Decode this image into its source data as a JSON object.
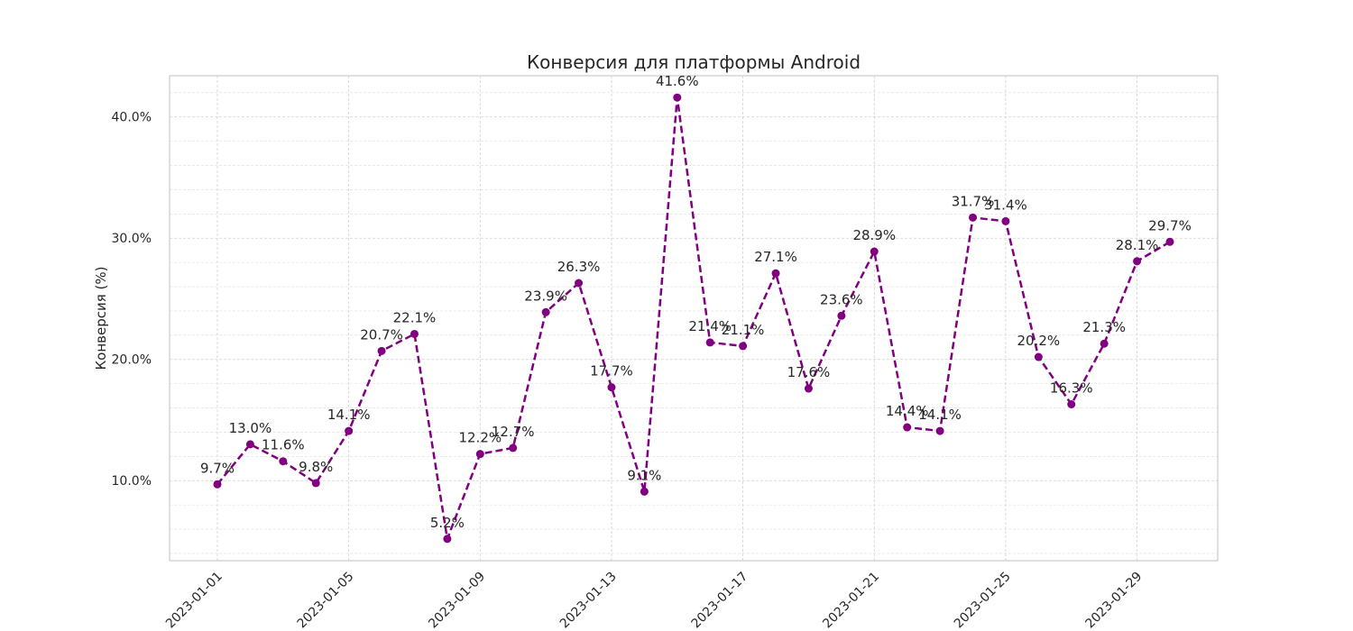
{
  "chart_data": {
    "type": "line",
    "title": "Конверсия для платформы Android",
    "xlabel": "",
    "ylabel": "Конверсия (%)",
    "x": [
      "2023-01-01",
      "2023-01-02",
      "2023-01-03",
      "2023-01-04",
      "2023-01-05",
      "2023-01-06",
      "2023-01-07",
      "2023-01-08",
      "2023-01-09",
      "2023-01-10",
      "2023-01-11",
      "2023-01-12",
      "2023-01-13",
      "2023-01-14",
      "2023-01-15",
      "2023-01-16",
      "2023-01-17",
      "2023-01-18",
      "2023-01-19",
      "2023-01-20",
      "2023-01-21",
      "2023-01-22",
      "2023-01-23",
      "2023-01-24",
      "2023-01-25",
      "2023-01-26",
      "2023-01-27",
      "2023-01-28",
      "2023-01-29",
      "2023-01-30"
    ],
    "x_ticks": [
      "2023-01-01",
      "2023-01-05",
      "2023-01-09",
      "2023-01-13",
      "2023-01-17",
      "2023-01-21",
      "2023-01-25",
      "2023-01-29"
    ],
    "series": [
      {
        "values": [
          9.7,
          13.0,
          11.6,
          9.8,
          14.1,
          20.7,
          22.1,
          5.2,
          12.2,
          12.7,
          23.9,
          26.3,
          17.7,
          9.1,
          41.6,
          21.4,
          21.1,
          27.1,
          17.6,
          23.6,
          28.9,
          14.4,
          14.1,
          31.7,
          31.4,
          20.2,
          16.3,
          21.3,
          28.1,
          29.7
        ],
        "labels": [
          "9.7%",
          "13.0%",
          "11.6%",
          "9.8%",
          "14.1%",
          "20.7%",
          "22.1%",
          "5.2%",
          "12.2%",
          "12.7%",
          "23.9%",
          "26.3%",
          "17.7%",
          "9.1%",
          "41.6%",
          "21.4%",
          "21.1%",
          "27.1%",
          "17.6%",
          "23.6%",
          "28.9%",
          "14.4%",
          "14.1%",
          "31.7%",
          "31.4%",
          "20.2%",
          "16.3%",
          "21.3%",
          "28.1%",
          "29.7%"
        ]
      }
    ],
    "y_ticks": [
      10,
      20,
      30,
      40
    ],
    "y_tick_labels": [
      "10.0%",
      "20.0%",
      "30.0%",
      "40.0%"
    ],
    "ylim": [
      3.4,
      43.4
    ],
    "grid": true,
    "line_style": "dashed",
    "marker": "circle",
    "line_color": "#800080"
  }
}
